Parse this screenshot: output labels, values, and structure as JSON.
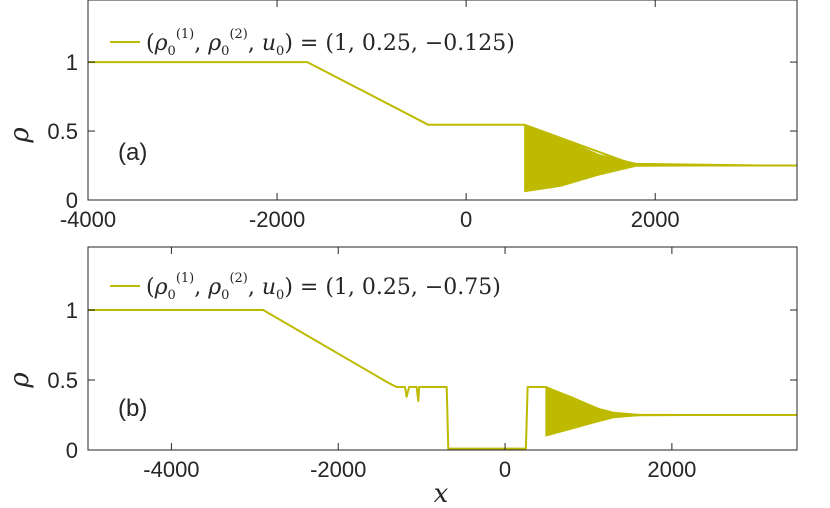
{
  "colors": {
    "series": "#BDBA00",
    "axes": "#262626",
    "background": "#ffffff"
  },
  "x_axis_label": "x",
  "chart_data": [
    {
      "type": "line",
      "panel_label": "(a)",
      "ylabel": "ρ",
      "xlim": [
        -4000,
        3500
      ],
      "ylim": [
        0,
        1.45
      ],
      "xticks": [
        -4000,
        -2000,
        0,
        2000
      ],
      "xtick_labels": [
        "-4000",
        "-2000",
        "0",
        "2000"
      ],
      "yticks": [
        0,
        0.5,
        1
      ],
      "ytick_labels": [
        "0",
        "0.5",
        "1"
      ],
      "grid": false,
      "legend_position": "top-left",
      "series": [
        {
          "name": "(ρ0(1), ρ0(2), u0) = (1, 0.25, −0.125)",
          "x": [
            -4000,
            -1680,
            -400,
            620,
            1800,
            3500
          ],
          "y": [
            1.0,
            1.0,
            0.545,
            0.545,
            0.25,
            0.25
          ],
          "oscillation_band": {
            "x": [
              620,
              1000,
              1400,
              1800,
              3500
            ],
            "lower": [
              0.06,
              0.1,
              0.18,
              0.245,
              0.25
            ],
            "upper": [
              0.545,
              0.45,
              0.33,
              0.265,
              0.25
            ]
          }
        }
      ]
    },
    {
      "type": "line",
      "panel_label": "(b)",
      "ylabel": "ρ",
      "xlim": [
        -5000,
        3500
      ],
      "ylim": [
        0,
        1.45
      ],
      "xticks": [
        -4000,
        -2000,
        0,
        2000
      ],
      "xtick_labels": [
        "-4000",
        "-2000",
        "0",
        "2000"
      ],
      "yticks": [
        0,
        0.5,
        1
      ],
      "ytick_labels": [
        "0",
        "0.5",
        "1"
      ],
      "grid": false,
      "legend_position": "top-left",
      "series": [
        {
          "name": "(ρ0(1), ρ0(2), u0) = (1, 0.25, −0.75)",
          "x": [
            -5000,
            -2900,
            -1400,
            -1300,
            -1280,
            -1200,
            -1180,
            -1150,
            -1060,
            -1040,
            -1030,
            -700,
            -680,
            -200,
            -180,
            250,
            270,
            490,
            1300,
            3500
          ],
          "y": [
            1.0,
            1.0,
            0.48,
            0.45,
            0.45,
            0.45,
            0.38,
            0.45,
            0.45,
            0.35,
            0.45,
            0.45,
            0.01,
            0.01,
            0.01,
            0.01,
            0.45,
            0.45,
            0.25,
            0.25
          ],
          "oscillation_band": {
            "x": [
              490,
              800,
              1100,
              1300,
              1600,
              3500
            ],
            "lower": [
              0.1,
              0.15,
              0.2,
              0.23,
              0.245,
              0.25
            ],
            "upper": [
              0.45,
              0.38,
              0.3,
              0.27,
              0.255,
              0.25
            ]
          }
        }
      ]
    }
  ]
}
